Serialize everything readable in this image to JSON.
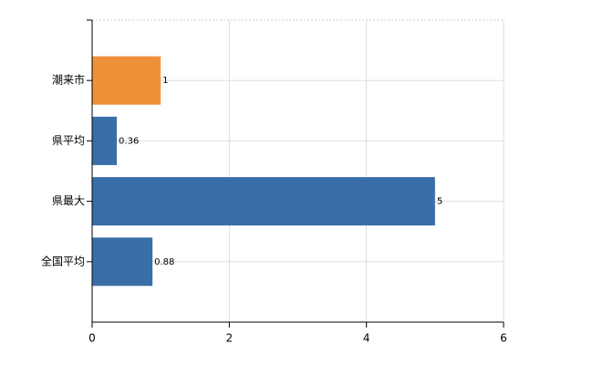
{
  "chart_data": {
    "type": "hbar",
    "categories": [
      "潮来市",
      "県平均",
      "県最大",
      "全国平均"
    ],
    "values": [
      1,
      0.36,
      5,
      0.88
    ],
    "colors": [
      "#f0913a",
      "#3a6ea8",
      "#3a6ea8",
      "#3a6ea8"
    ],
    "xlim": [
      0,
      6
    ],
    "xticks": [
      0,
      2,
      4,
      6
    ],
    "grid": true
  }
}
